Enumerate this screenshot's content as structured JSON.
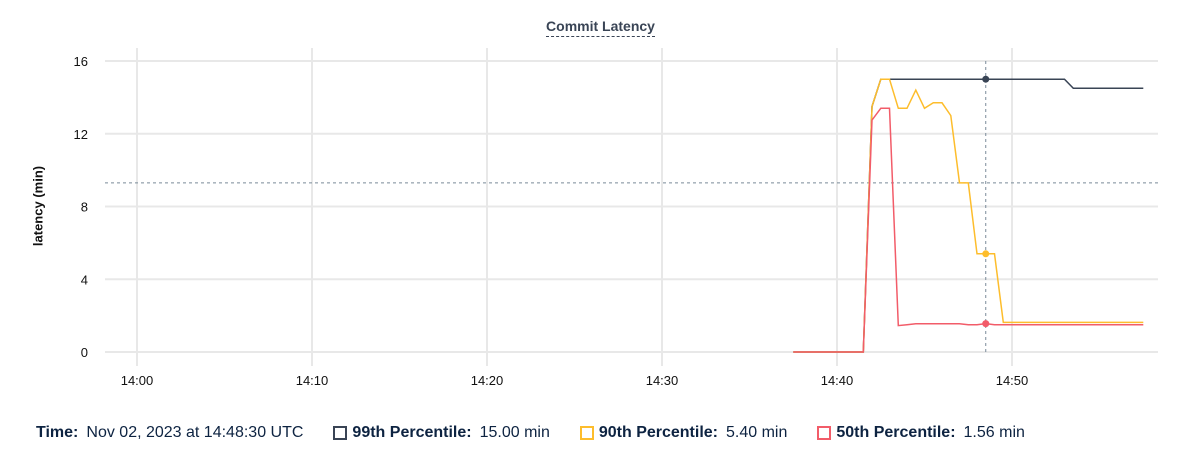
{
  "chart_data": {
    "type": "line",
    "title": "Commit Latency",
    "ylabel": "latency (min)",
    "xlabel": "",
    "ylim": [
      0,
      16
    ],
    "yticks": [
      "0",
      "4",
      "8",
      "12",
      "16"
    ],
    "xticks": [
      "14:00",
      "14:10",
      "14:20",
      "14:30",
      "14:40",
      "14:50"
    ],
    "grid": true,
    "x_start": "14:37:30",
    "x_step_seconds": 30,
    "series": [
      {
        "name": "99th Percentile",
        "color": "#394455",
        "values": [
          0,
          0,
          0,
          0,
          0,
          0,
          0,
          0,
          0,
          13.5,
          15,
          15,
          15,
          15,
          15,
          15,
          15,
          15,
          15,
          15,
          15,
          15,
          15,
          15,
          15,
          15,
          15,
          15,
          15,
          15,
          15,
          15,
          14.5,
          14.5,
          14.5,
          14.5,
          14.5,
          14.5,
          14.5,
          14.5,
          14.5
        ]
      },
      {
        "name": "90th Percentile",
        "color": "#fdbd2c",
        "values": [
          0,
          0,
          0,
          0,
          0,
          0,
          0,
          0,
          0,
          13.5,
          15,
          15,
          13.4,
          13.4,
          14.4,
          13.4,
          13.7,
          13.7,
          13,
          9.3,
          9.3,
          5.4,
          5.4,
          5.4,
          1.63,
          1.63,
          1.63,
          1.63,
          1.63,
          1.63,
          1.63,
          1.63,
          1.63,
          1.63,
          1.63,
          1.63,
          1.63,
          1.63,
          1.63,
          1.63,
          1.63
        ]
      },
      {
        "name": "50th Percentile",
        "color": "#f25c69",
        "values": [
          0,
          0,
          0,
          0,
          0,
          0,
          0,
          0,
          0,
          12.75,
          13.4,
          13.4,
          1.45,
          1.5,
          1.55,
          1.55,
          1.55,
          1.55,
          1.55,
          1.55,
          1.5,
          1.5,
          1.56,
          1.5,
          1.5,
          1.5,
          1.5,
          1.5,
          1.5,
          1.5,
          1.5,
          1.5,
          1.5,
          1.5,
          1.5,
          1.5,
          1.5,
          1.5,
          1.5,
          1.5,
          1.5
        ]
      }
    ],
    "hover_index": 22,
    "hover_y": 9.3
  },
  "legend": {
    "time_label": "Time:",
    "time_value": "Nov 02, 2023 at 14:48:30 UTC",
    "items": [
      {
        "label": "99th Percentile:",
        "value": "15.00 min"
      },
      {
        "label": "90th Percentile:",
        "value": "5.40 min"
      },
      {
        "label": "50th Percentile:",
        "value": "1.56 min"
      }
    ]
  }
}
